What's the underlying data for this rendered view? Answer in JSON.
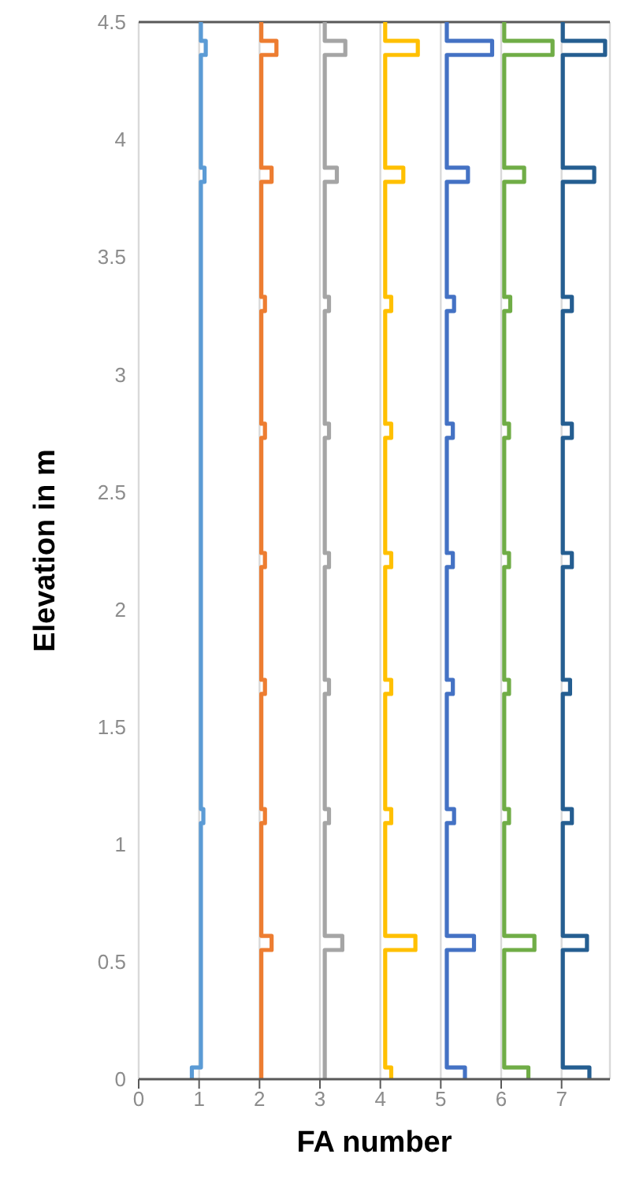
{
  "chart_data": {
    "type": "line",
    "xlabel": "FA number",
    "ylabel": "Elevation in m",
    "xlim": [
      0,
      7.8
    ],
    "xticks": [
      0,
      1,
      2,
      3,
      4,
      5,
      6,
      7
    ],
    "ylim": [
      0,
      4.5
    ],
    "yticks": [
      0,
      0.5,
      1,
      1.5,
      2,
      2.5,
      3,
      3.5,
      4,
      4.5
    ],
    "grid": "x",
    "marker": "none",
    "line_style": "solid",
    "ref_lines": [
      {
        "axis": "y",
        "value": 4.5,
        "color": "#595959"
      }
    ],
    "series": [
      {
        "color": "#5b9bd5",
        "x": [
          0.88,
          0.88,
          1.03,
          1.03,
          1.07,
          1.07,
          1.03,
          1.03,
          1.09,
          1.09,
          1.03,
          1.03,
          1.11,
          1.11,
          1.03,
          1.03
        ],
        "values": [
          0,
          0.05,
          0.05,
          1.09,
          1.09,
          1.15,
          1.15,
          3.82,
          3.82,
          3.88,
          3.88,
          4.36,
          4.36,
          4.42,
          4.42,
          4.5
        ]
      },
      {
        "color": "#ed7d31",
        "x": [
          2.03,
          2.03,
          2.2,
          2.2,
          2.03,
          2.03,
          2.09,
          2.09,
          2.03,
          2.03,
          2.09,
          2.09,
          2.03,
          2.03,
          2.09,
          2.09,
          2.03,
          2.03,
          2.09,
          2.09,
          2.03,
          2.03,
          2.09,
          2.09,
          2.03,
          2.03,
          2.2,
          2.2,
          2.03,
          2.03,
          2.28,
          2.28,
          2.03,
          2.03
        ],
        "values": [
          0,
          0.55,
          0.55,
          0.61,
          0.61,
          1.09,
          1.09,
          1.15,
          1.15,
          1.64,
          1.64,
          1.7,
          1.7,
          2.18,
          2.18,
          2.24,
          2.24,
          2.73,
          2.73,
          2.79,
          2.79,
          3.27,
          3.27,
          3.33,
          3.33,
          3.82,
          3.82,
          3.88,
          3.88,
          4.36,
          4.36,
          4.42,
          4.42,
          4.5
        ]
      },
      {
        "color": "#a5a5a5",
        "x": [
          3.08,
          3.08,
          3.37,
          3.37,
          3.08,
          3.08,
          3.15,
          3.15,
          3.08,
          3.08,
          3.15,
          3.15,
          3.08,
          3.08,
          3.15,
          3.15,
          3.08,
          3.08,
          3.15,
          3.15,
          3.08,
          3.08,
          3.15,
          3.15,
          3.08,
          3.08,
          3.28,
          3.28,
          3.08,
          3.08,
          3.42,
          3.42,
          3.08,
          3.08
        ],
        "values": [
          0,
          0.55,
          0.55,
          0.61,
          0.61,
          1.09,
          1.09,
          1.15,
          1.15,
          1.64,
          1.64,
          1.7,
          1.7,
          2.18,
          2.18,
          2.24,
          2.24,
          2.73,
          2.73,
          2.79,
          2.79,
          3.27,
          3.27,
          3.33,
          3.33,
          3.82,
          3.82,
          3.88,
          3.88,
          4.36,
          4.36,
          4.42,
          4.42,
          4.5
        ]
      },
      {
        "color": "#ffc000",
        "x": [
          4.18,
          4.18,
          4.08,
          4.08,
          4.58,
          4.58,
          4.08,
          4.08,
          4.18,
          4.18,
          4.08,
          4.08,
          4.18,
          4.18,
          4.08,
          4.08,
          4.18,
          4.18,
          4.08,
          4.08,
          4.18,
          4.18,
          4.08,
          4.08,
          4.18,
          4.18,
          4.08,
          4.08,
          4.38,
          4.38,
          4.08,
          4.08,
          4.62,
          4.62,
          4.08,
          4.08
        ],
        "values": [
          0,
          0.05,
          0.05,
          0.55,
          0.55,
          0.61,
          0.61,
          1.09,
          1.09,
          1.15,
          1.15,
          1.64,
          1.64,
          1.7,
          1.7,
          2.18,
          2.18,
          2.24,
          2.24,
          2.73,
          2.73,
          2.79,
          2.79,
          3.27,
          3.27,
          3.33,
          3.33,
          3.82,
          3.82,
          3.88,
          3.88,
          4.36,
          4.36,
          4.42,
          4.42,
          4.5
        ]
      },
      {
        "color": "#4472c4",
        "x": [
          5.4,
          5.4,
          5.1,
          5.1,
          5.55,
          5.55,
          5.1,
          5.1,
          5.22,
          5.22,
          5.1,
          5.1,
          5.2,
          5.2,
          5.1,
          5.1,
          5.2,
          5.2,
          5.1,
          5.1,
          5.2,
          5.2,
          5.1,
          5.1,
          5.22,
          5.22,
          5.1,
          5.1,
          5.45,
          5.45,
          5.1,
          5.1,
          5.85,
          5.85,
          5.1,
          5.1
        ],
        "values": [
          0,
          0.05,
          0.05,
          0.55,
          0.55,
          0.61,
          0.61,
          1.09,
          1.09,
          1.15,
          1.15,
          1.64,
          1.64,
          1.7,
          1.7,
          2.18,
          2.18,
          2.24,
          2.24,
          2.73,
          2.73,
          2.79,
          2.79,
          3.27,
          3.27,
          3.33,
          3.33,
          3.82,
          3.82,
          3.88,
          3.88,
          4.36,
          4.36,
          4.42,
          4.42,
          4.5
        ]
      },
      {
        "color": "#70ad47",
        "x": [
          6.45,
          6.45,
          6.05,
          6.05,
          6.55,
          6.55,
          6.05,
          6.05,
          6.13,
          6.13,
          6.05,
          6.05,
          6.13,
          6.13,
          6.05,
          6.05,
          6.13,
          6.13,
          6.05,
          6.05,
          6.13,
          6.13,
          6.05,
          6.05,
          6.15,
          6.15,
          6.05,
          6.05,
          6.38,
          6.38,
          6.05,
          6.05,
          6.85,
          6.85,
          6.05,
          6.05
        ],
        "values": [
          0,
          0.05,
          0.05,
          0.55,
          0.55,
          0.61,
          0.61,
          1.09,
          1.09,
          1.15,
          1.15,
          1.64,
          1.64,
          1.7,
          1.7,
          2.18,
          2.18,
          2.24,
          2.24,
          2.73,
          2.73,
          2.79,
          2.79,
          3.27,
          3.27,
          3.33,
          3.33,
          3.82,
          3.82,
          3.88,
          3.88,
          4.36,
          4.36,
          4.42,
          4.42,
          4.5
        ]
      },
      {
        "color": "#255e91",
        "x": [
          7.46,
          7.46,
          7.02,
          7.02,
          7.42,
          7.42,
          7.02,
          7.02,
          7.17,
          7.17,
          7.02,
          7.02,
          7.14,
          7.14,
          7.02,
          7.02,
          7.17,
          7.17,
          7.02,
          7.02,
          7.17,
          7.17,
          7.02,
          7.02,
          7.17,
          7.17,
          7.02,
          7.02,
          7.54,
          7.54,
          7.02,
          7.02,
          7.72,
          7.72,
          7.02,
          7.02
        ],
        "values": [
          0,
          0.05,
          0.05,
          0.55,
          0.55,
          0.61,
          0.61,
          1.09,
          1.09,
          1.15,
          1.15,
          1.64,
          1.64,
          1.7,
          1.7,
          2.18,
          2.18,
          2.24,
          2.24,
          2.73,
          2.73,
          2.79,
          2.79,
          3.27,
          3.27,
          3.33,
          3.33,
          3.82,
          3.82,
          3.88,
          3.88,
          4.36,
          4.36,
          4.42,
          4.42,
          4.5
        ]
      }
    ]
  }
}
